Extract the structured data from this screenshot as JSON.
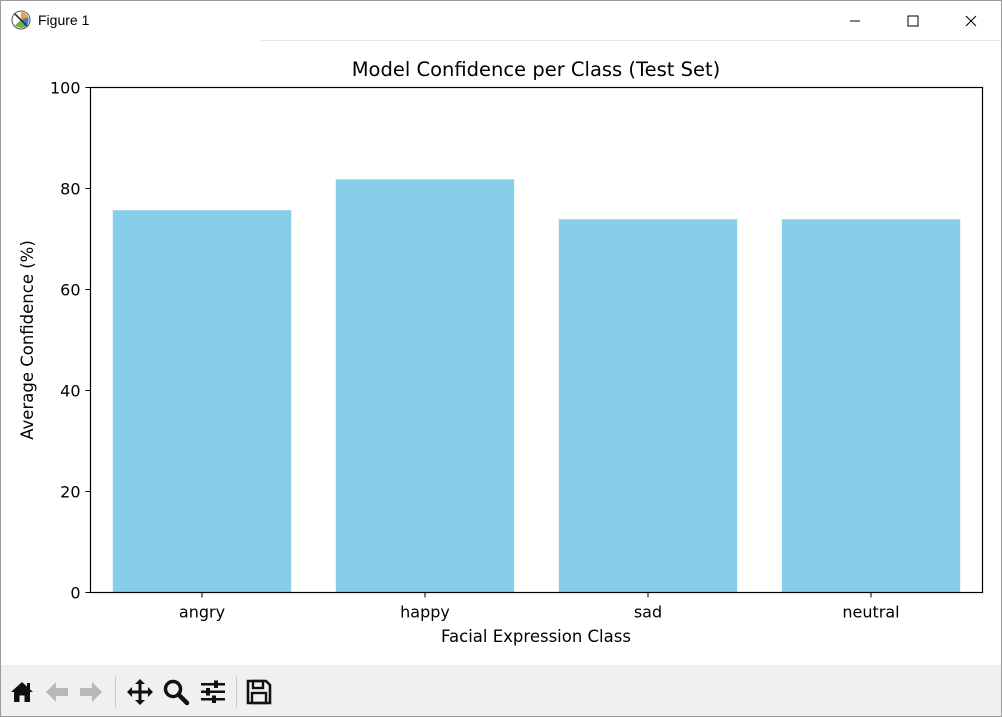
{
  "window": {
    "title": "Figure 1",
    "icons": [
      "figure-app-icon",
      "minimize-icon",
      "maximize-icon",
      "close-icon"
    ]
  },
  "toolbar": {
    "buttons": [
      "home-icon",
      "back-icon",
      "forward-icon",
      "pan-icon",
      "zoom-icon",
      "configure-subplots-icon",
      "save-icon"
    ]
  },
  "colors": {
    "bar": "#87ceeb",
    "toolbar_bg": "#f0f0f0"
  },
  "chart_data": {
    "type": "bar",
    "title": "Model Confidence per Class (Test Set)",
    "xlabel": "Facial Expression Class",
    "ylabel": "Average Confidence (%)",
    "categories": [
      "angry",
      "happy",
      "sad",
      "neutral"
    ],
    "values": [
      75.7,
      81.8,
      73.9,
      73.9
    ],
    "ylim": [
      0,
      100
    ],
    "yticks": [
      0,
      20,
      40,
      60,
      80,
      100
    ],
    "grid": false,
    "legend": false
  }
}
